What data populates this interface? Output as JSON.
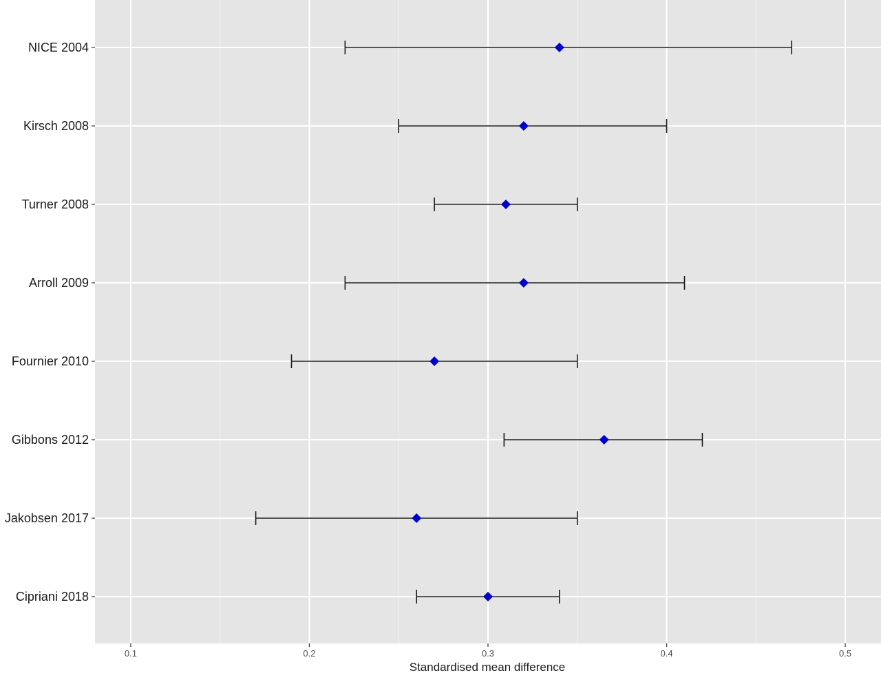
{
  "chart_data": {
    "type": "forest",
    "title": "",
    "xlabel": "Standardised mean difference",
    "ylabel": "",
    "xlim": [
      0.08,
      0.52
    ],
    "x_ticks": [
      0.1,
      0.2,
      0.3,
      0.4,
      0.5
    ],
    "x_tick_labels": [
      "0.1",
      "0.2",
      "0.3",
      "0.4",
      "0.5"
    ],
    "grid": true,
    "legend": "none",
    "colors": {
      "panel_background": "#e5e5e5",
      "grid_major": "#ffffff",
      "point": "#0000cc",
      "error_bar": "#1a1a1a"
    },
    "categories": [
      "NICE 2004",
      "Kirsch 2008",
      "Turner 2008",
      "Arroll 2009",
      "Fournier 2010",
      "Gibbons 2012",
      "Jakobsen 2017",
      "Cipriani 2018"
    ],
    "estimates": [
      0.34,
      0.32,
      0.31,
      0.32,
      0.27,
      0.365,
      0.26,
      0.3
    ],
    "lower": [
      0.22,
      0.25,
      0.27,
      0.22,
      0.19,
      0.309,
      0.17,
      0.26
    ],
    "upper": [
      0.47,
      0.4,
      0.35,
      0.41,
      0.35,
      0.42,
      0.35,
      0.34
    ]
  }
}
